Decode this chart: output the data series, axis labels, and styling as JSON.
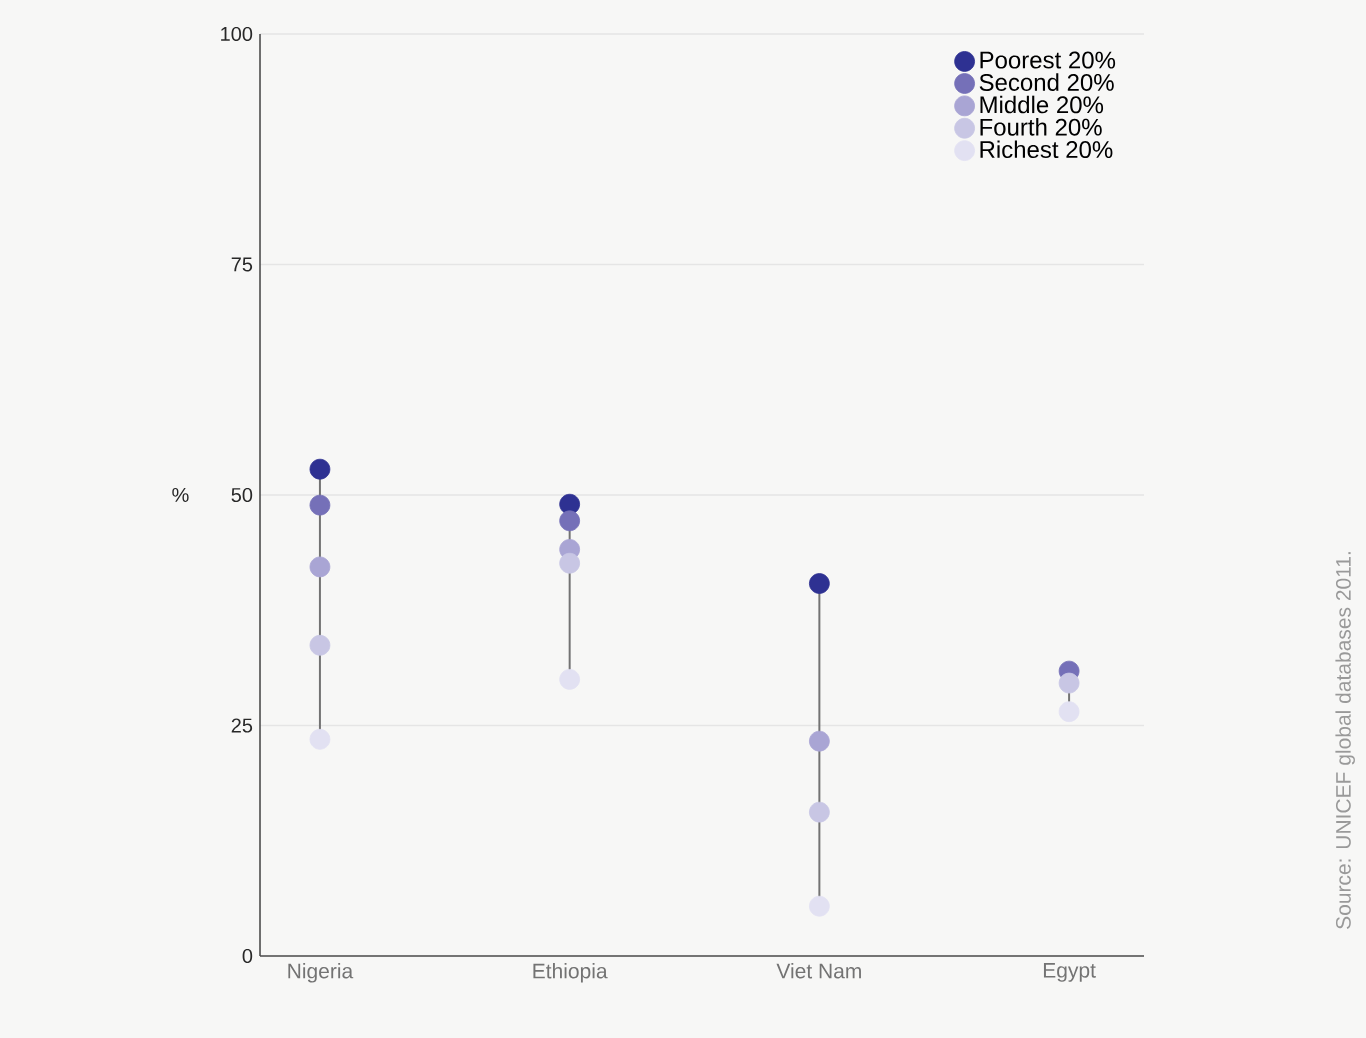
{
  "chart_data": {
    "type": "scatter",
    "ylabel": "%",
    "categories": [
      "Nigeria",
      "Ethiopia",
      "Viet Nam",
      "Egypt"
    ],
    "series": [
      {
        "name": "Poorest 20%",
        "color": "#2e3192",
        "values": [
          52.8,
          49.0,
          40.4,
          null
        ]
      },
      {
        "name": "Second 20%",
        "color": "#7570b8",
        "values": [
          48.9,
          47.2,
          null,
          30.9
        ]
      },
      {
        "name": "Middle 20%",
        "color": "#a9a5d4",
        "values": [
          42.2,
          44.1,
          23.3,
          null
        ]
      },
      {
        "name": "Fourth 20%",
        "color": "#c8c6e4",
        "values": [
          33.7,
          42.6,
          15.6,
          29.6
        ]
      },
      {
        "name": "Richest 20%",
        "color": "#e2e1f2",
        "values": [
          23.5,
          30.0,
          5.4,
          26.5
        ]
      }
    ],
    "ylim": [
      0,
      100
    ],
    "yticks": [
      0,
      25,
      50,
      75,
      100
    ],
    "grid": "y",
    "legend": "top right",
    "marker": "circle",
    "annotations": [
      "Source: UNICEF global databases 2011."
    ]
  }
}
